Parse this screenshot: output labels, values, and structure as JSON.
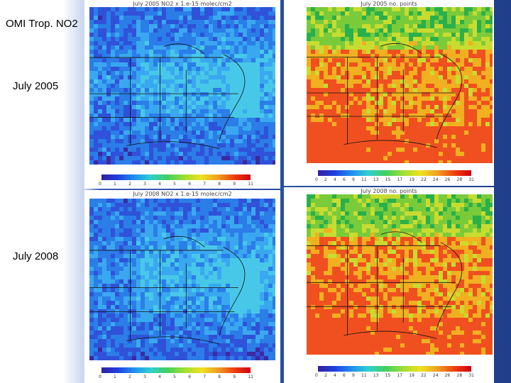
{
  "labels": {
    "title": "OMI Trop. NO2",
    "year_top": "July 2005",
    "year_bottom": "July 2008"
  },
  "panels": [
    {
      "id": "p1",
      "title": "July 2005 NO2 x 1.e-15 molec/cm2",
      "ticks": [
        "0",
        "1",
        "2",
        "3",
        "4",
        "5",
        "6",
        "7",
        "8",
        "9",
        "11"
      ],
      "colormap": "low-no2",
      "colors": [
        "#3b2aa0",
        "#2f52d8",
        "#2b7de8",
        "#3aa8f0",
        "#48c8e8"
      ]
    },
    {
      "id": "p2",
      "title": "July 2005 no. points",
      "ticks": [
        "0",
        "2",
        "4",
        "6",
        "9",
        "11",
        "13",
        "15",
        "17",
        "19",
        "22",
        "24",
        "26",
        "28",
        "31"
      ],
      "colormap": "high-count",
      "colors": [
        "#2ab04a",
        "#7acb3a",
        "#c8dc30",
        "#f0b020",
        "#f05020"
      ]
    },
    {
      "id": "p3",
      "title": "July 2008 NO2 x 1.e-15 molec/cm2",
      "ticks": [
        "0",
        "1",
        "2",
        "3",
        "4",
        "5",
        "6",
        "7",
        "8",
        "9",
        "11"
      ],
      "colormap": "low-no2",
      "colors": [
        "#3b2aa0",
        "#2f52d8",
        "#2b7de8",
        "#3aa8f0",
        "#48c8e8"
      ]
    },
    {
      "id": "p4",
      "title": "July 2008 no. points",
      "ticks": [
        "0",
        "2",
        "4",
        "6",
        "9",
        "11",
        "13",
        "15",
        "17",
        "19",
        "22",
        "24",
        "26",
        "28",
        "31"
      ],
      "colormap": "high-count",
      "colors": [
        "#2ab04a",
        "#7acb3a",
        "#c8dc30",
        "#f0b020",
        "#f05020"
      ]
    }
  ],
  "colorbar_gradient": [
    "#3020a0",
    "#2040e0",
    "#2090f0",
    "#30d0d0",
    "#40d060",
    "#a0e030",
    "#f0e020",
    "#f0a020",
    "#f04010",
    "#d00010"
  ]
}
